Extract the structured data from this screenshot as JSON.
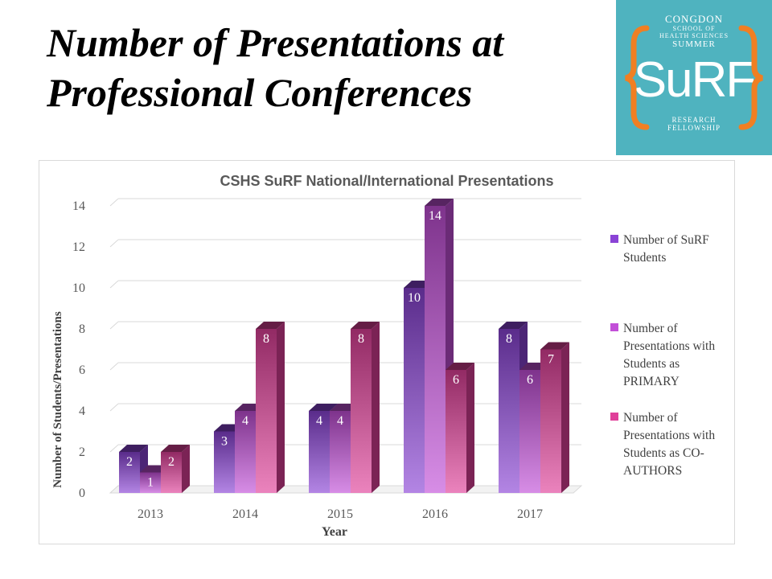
{
  "slide": {
    "title_line1": "Number of Presentations at",
    "title_line2": "Professional Conferences"
  },
  "logo": {
    "line1": "CONGDON",
    "line2": "SCHOOL OF",
    "line3": "HEALTH SCIENCES",
    "line4": "SUMMER",
    "main": "SuRF",
    "bottom1": "RESEARCH",
    "bottom2": "FELLOWSHIP",
    "bg_color": "#4fb3bf",
    "brace_color": "#f07f22"
  },
  "chart_data": {
    "type": "bar",
    "title": "CSHS SuRF National/International  Presentations",
    "xlabel": "Year",
    "ylabel": "Number of Students/Presentations",
    "categories": [
      "2013",
      "2014",
      "2015",
      "2016",
      "2017"
    ],
    "yticks": [
      "0",
      "2",
      "4",
      "6",
      "8",
      "10",
      "12",
      "14"
    ],
    "ylim": [
      0,
      14
    ],
    "grid": true,
    "style": "3d-clustered-column",
    "legend_position": "right",
    "series": [
      {
        "name": "Number of SuRF Students",
        "values": [
          2,
          3,
          4,
          10,
          8
        ],
        "color": "#8a43d6"
      },
      {
        "name": "Number of Presentations with Students as PRIMARY",
        "values": [
          1,
          4,
          4,
          14,
          6
        ],
        "color": "#c24fd8"
      },
      {
        "name": "Number of Presentations with Students as CO-AUTHORS",
        "values": [
          2,
          8,
          8,
          6,
          7
        ],
        "color": "#e0409a"
      }
    ],
    "data_labels": [
      [
        "2",
        "3",
        "4",
        "10",
        "8"
      ],
      [
        "1",
        "4",
        "4",
        "14",
        "6"
      ],
      [
        "2",
        "8",
        "8",
        "6",
        "7"
      ]
    ]
  }
}
